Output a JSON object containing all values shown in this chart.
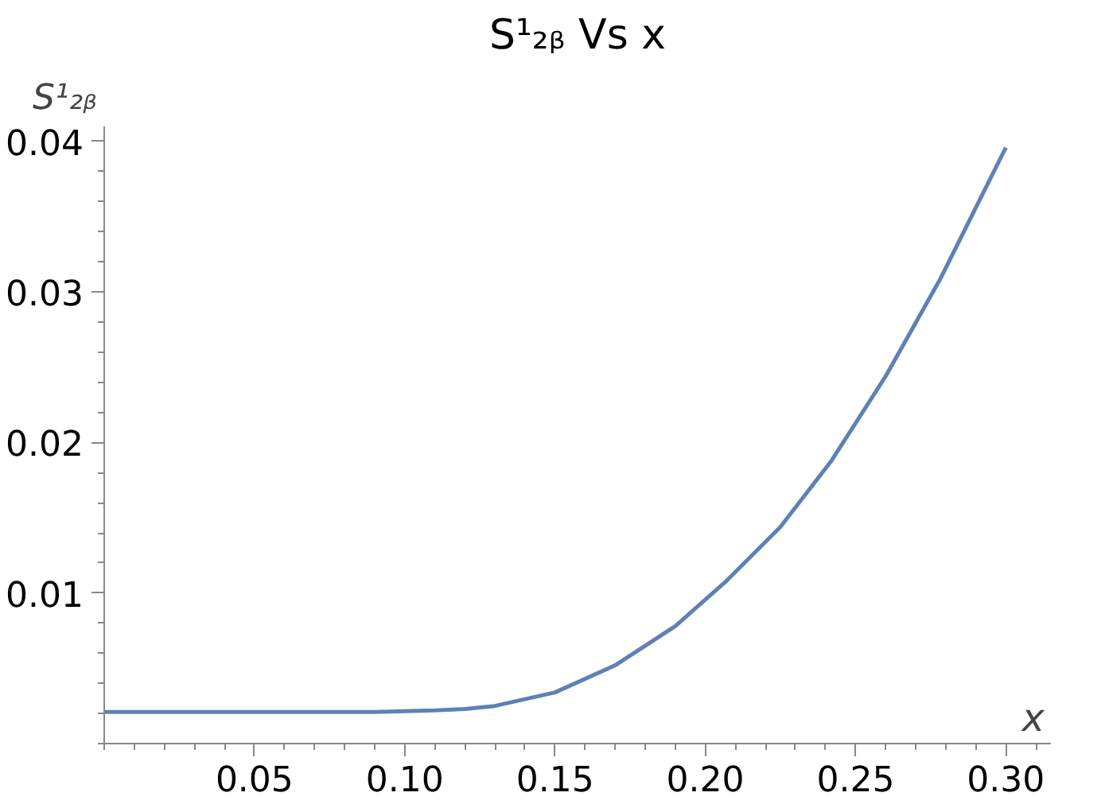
{
  "chart_data": {
    "type": "line",
    "title": "S¹₂ᵦ Vs x",
    "xlabel": "x",
    "ylabel": "S¹₂ᵦ",
    "x": [
      0,
      0.05,
      0.09,
      0.11,
      0.12,
      0.13,
      0.15,
      0.17,
      0.19,
      0.207,
      0.225,
      0.242,
      0.26,
      0.278,
      0.3
    ],
    "series": [
      {
        "color": "#5e81b5",
        "values": [
          0.0021,
          0.0021,
          0.0021,
          0.0022,
          0.0023,
          0.0025,
          0.0034,
          0.0052,
          0.0078,
          0.0108,
          0.0144,
          0.0188,
          0.0244,
          0.0308,
          0.0396
        ]
      }
    ],
    "xlim": [
      0,
      0.315
    ],
    "ylim": [
      0,
      0.041
    ],
    "xticks": [
      0.05,
      {
        "value": 0.1,
        "label": "0.10"
      },
      0.15,
      {
        "value": 0.2,
        "label": "0.20"
      },
      0.25,
      {
        "value": 0.3,
        "label": "0.30"
      }
    ],
    "yticks": [
      0.01,
      0.02,
      0.03,
      0.04
    ],
    "grid": false,
    "marker": "none",
    "line_style": "solid"
  }
}
